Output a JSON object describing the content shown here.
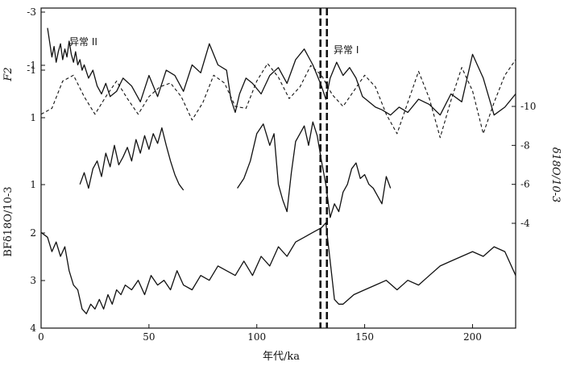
{
  "chart_data": {
    "type": "line",
    "xlabel": "年代/ka",
    "x_ticks": [
      0,
      50,
      100,
      150,
      200
    ],
    "xlim": [
      0,
      220
    ],
    "left_axis_upper": {
      "label": "F2",
      "ticks": [
        "-3",
        "-1",
        "-1",
        "1"
      ],
      "ylim": [
        -3,
        1
      ]
    },
    "left_axis_lower": {
      "label": "BFδ18O/10-3",
      "ticks": [
        "1",
        "2",
        "3",
        "4"
      ],
      "ylim": [
        4,
        0.5
      ]
    },
    "right_axis": {
      "label": "δ18O/10-3",
      "ticks": [
        "-10",
        "-8",
        "-6",
        "-4"
      ],
      "ylim": [
        -3,
        -12.5
      ]
    },
    "annotations": [
      "异常 II",
      "异常 I"
    ],
    "series": [
      {
        "axis": "upper",
        "style": "solid",
        "x": [
          3,
          5,
          6,
          7,
          8,
          9,
          10,
          11,
          12,
          13,
          14,
          15,
          16,
          17,
          18,
          19,
          20,
          22,
          24,
          26,
          28,
          30,
          32,
          35,
          38,
          42,
          46,
          50,
          54,
          58,
          62,
          66,
          70,
          74,
          78,
          82,
          86,
          88,
          90,
          92,
          95,
          98,
          102,
          106,
          110,
          114,
          118,
          122,
          126,
          128,
          130,
          132,
          134,
          137,
          140,
          143,
          146,
          149,
          152,
          155,
          158,
          162,
          166,
          170,
          175,
          180,
          185,
          190,
          195,
          200,
          205,
          210,
          215,
          220
        ],
        "y": [
          -2.4,
          -1.3,
          -1.7,
          -1.1,
          -1.5,
          -1.8,
          -1.2,
          -1.6,
          -1.3,
          -1.9,
          -1.4,
          -1.1,
          -1.5,
          -1.0,
          -1.2,
          -0.8,
          -1.0,
          -0.5,
          -0.8,
          -0.2,
          0.1,
          -0.3,
          0.2,
          0.0,
          -0.5,
          -0.2,
          0.4,
          -0.6,
          0.2,
          -0.8,
          -0.6,
          0.0,
          -1.0,
          -0.7,
          -1.8,
          -1.0,
          -0.8,
          0.3,
          0.8,
          0.1,
          -0.5,
          -0.3,
          0.1,
          -0.6,
          -0.9,
          -0.3,
          -1.2,
          -1.6,
          -1.0,
          -0.6,
          -0.2,
          0.3,
          -0.5,
          -1.1,
          -0.6,
          -0.9,
          -0.5,
          0.2,
          0.4,
          0.6,
          0.7,
          0.9,
          0.6,
          0.8,
          0.3,
          0.5,
          0.9,
          0.1,
          0.4,
          -1.4,
          -0.5,
          0.9,
          0.6,
          0.1
        ]
      },
      {
        "axis": "right",
        "style": "dashed",
        "x": [
          0,
          5,
          10,
          15,
          20,
          25,
          30,
          35,
          40,
          45,
          50,
          55,
          60,
          65,
          70,
          75,
          80,
          85,
          90,
          95,
          100,
          105,
          110,
          115,
          120,
          125,
          130,
          135,
          140,
          145,
          150,
          155,
          160,
          165,
          170,
          175,
          180,
          185,
          190,
          195,
          200,
          205,
          210,
          215,
          220
        ],
        "y": [
          -9.6,
          -9.9,
          -11.3,
          -11.6,
          -10.5,
          -9.6,
          -10.5,
          -11.3,
          -10.4,
          -9.6,
          -10.5,
          -11.0,
          -11.2,
          -10.5,
          -9.3,
          -10.2,
          -11.6,
          -11.2,
          -10.0,
          -9.9,
          -11.3,
          -12.2,
          -11.5,
          -10.4,
          -11.0,
          -12.1,
          -11.6,
          -10.6,
          -10.0,
          -10.8,
          -11.6,
          -11.0,
          -9.6,
          -8.6,
          -10.2,
          -11.8,
          -10.4,
          -8.4,
          -10.3,
          -12.0,
          -10.8,
          -8.6,
          -10.2,
          -11.6,
          -12.4
        ]
      },
      {
        "axis": "right",
        "style": "solid",
        "x": [
          18,
          20,
          22,
          24,
          26,
          28,
          30,
          32,
          34,
          36,
          38,
          40,
          42,
          44,
          46,
          48,
          50,
          52,
          54,
          56,
          58,
          60,
          62,
          64,
          66
        ],
        "y": [
          -6.0,
          -6.6,
          -5.8,
          -6.8,
          -7.2,
          -6.4,
          -7.6,
          -6.9,
          -8.0,
          -7.0,
          -7.4,
          -7.9,
          -7.2,
          -8.3,
          -7.6,
          -8.5,
          -7.8,
          -8.6,
          -8.1,
          -8.9,
          -8.0,
          -7.2,
          -6.5,
          -6.0,
          -5.7
        ]
      },
      {
        "axis": "right",
        "style": "solid",
        "x": [
          91,
          94,
          97,
          100,
          103,
          106,
          108,
          110,
          112,
          114,
          116,
          118,
          120,
          122,
          124,
          126,
          128,
          130,
          132,
          134,
          136,
          138,
          140,
          142,
          144,
          146,
          148,
          150,
          152,
          154,
          156,
          158,
          160,
          162
        ],
        "y": [
          -5.8,
          -6.3,
          -7.2,
          -8.6,
          -9.1,
          -8.0,
          -8.6,
          -6.0,
          -5.2,
          -4.6,
          -6.6,
          -8.2,
          -8.6,
          -9.0,
          -8.0,
          -9.2,
          -8.5,
          -7.2,
          -6.0,
          -4.3,
          -5.0,
          -4.6,
          -5.6,
          -6.0,
          -6.8,
          -7.1,
          -6.3,
          -6.5,
          -6.0,
          -5.8,
          -5.4,
          -5.0,
          -6.4,
          -5.8
        ]
      },
      {
        "axis": "lower",
        "style": "solid",
        "x": [
          0,
          3,
          5,
          7,
          9,
          11,
          13,
          15,
          17,
          19,
          21,
          23,
          25,
          27,
          29,
          31,
          33,
          35,
          37,
          39,
          42,
          45,
          48,
          51,
          54,
          57,
          60,
          63,
          66,
          70,
          74,
          78,
          82,
          86,
          90,
          94,
          98,
          102,
          106,
          110,
          114,
          118,
          122,
          126,
          130,
          132,
          134,
          136,
          138,
          140,
          145,
          150,
          155,
          160,
          165,
          170,
          175,
          180,
          185,
          190,
          195,
          200,
          205,
          210,
          215,
          220
        ],
        "y": [
          2.0,
          2.1,
          2.4,
          2.2,
          2.5,
          2.3,
          2.8,
          3.1,
          3.2,
          3.6,
          3.7,
          3.5,
          3.6,
          3.4,
          3.6,
          3.3,
          3.5,
          3.2,
          3.3,
          3.1,
          3.2,
          3.0,
          3.3,
          2.9,
          3.1,
          3.0,
          3.2,
          2.8,
          3.1,
          3.2,
          2.9,
          3.0,
          2.7,
          2.8,
          2.9,
          2.6,
          2.9,
          2.5,
          2.7,
          2.3,
          2.5,
          2.2,
          2.1,
          2.0,
          1.9,
          1.8,
          2.6,
          3.4,
          3.5,
          3.5,
          3.3,
          3.2,
          3.1,
          3.0,
          3.2,
          3.0,
          3.1,
          2.9,
          2.7,
          2.6,
          2.5,
          2.4,
          2.5,
          2.3,
          2.4,
          2.9
        ]
      }
    ],
    "vlines_ka": [
      129.5,
      132.5
    ]
  }
}
